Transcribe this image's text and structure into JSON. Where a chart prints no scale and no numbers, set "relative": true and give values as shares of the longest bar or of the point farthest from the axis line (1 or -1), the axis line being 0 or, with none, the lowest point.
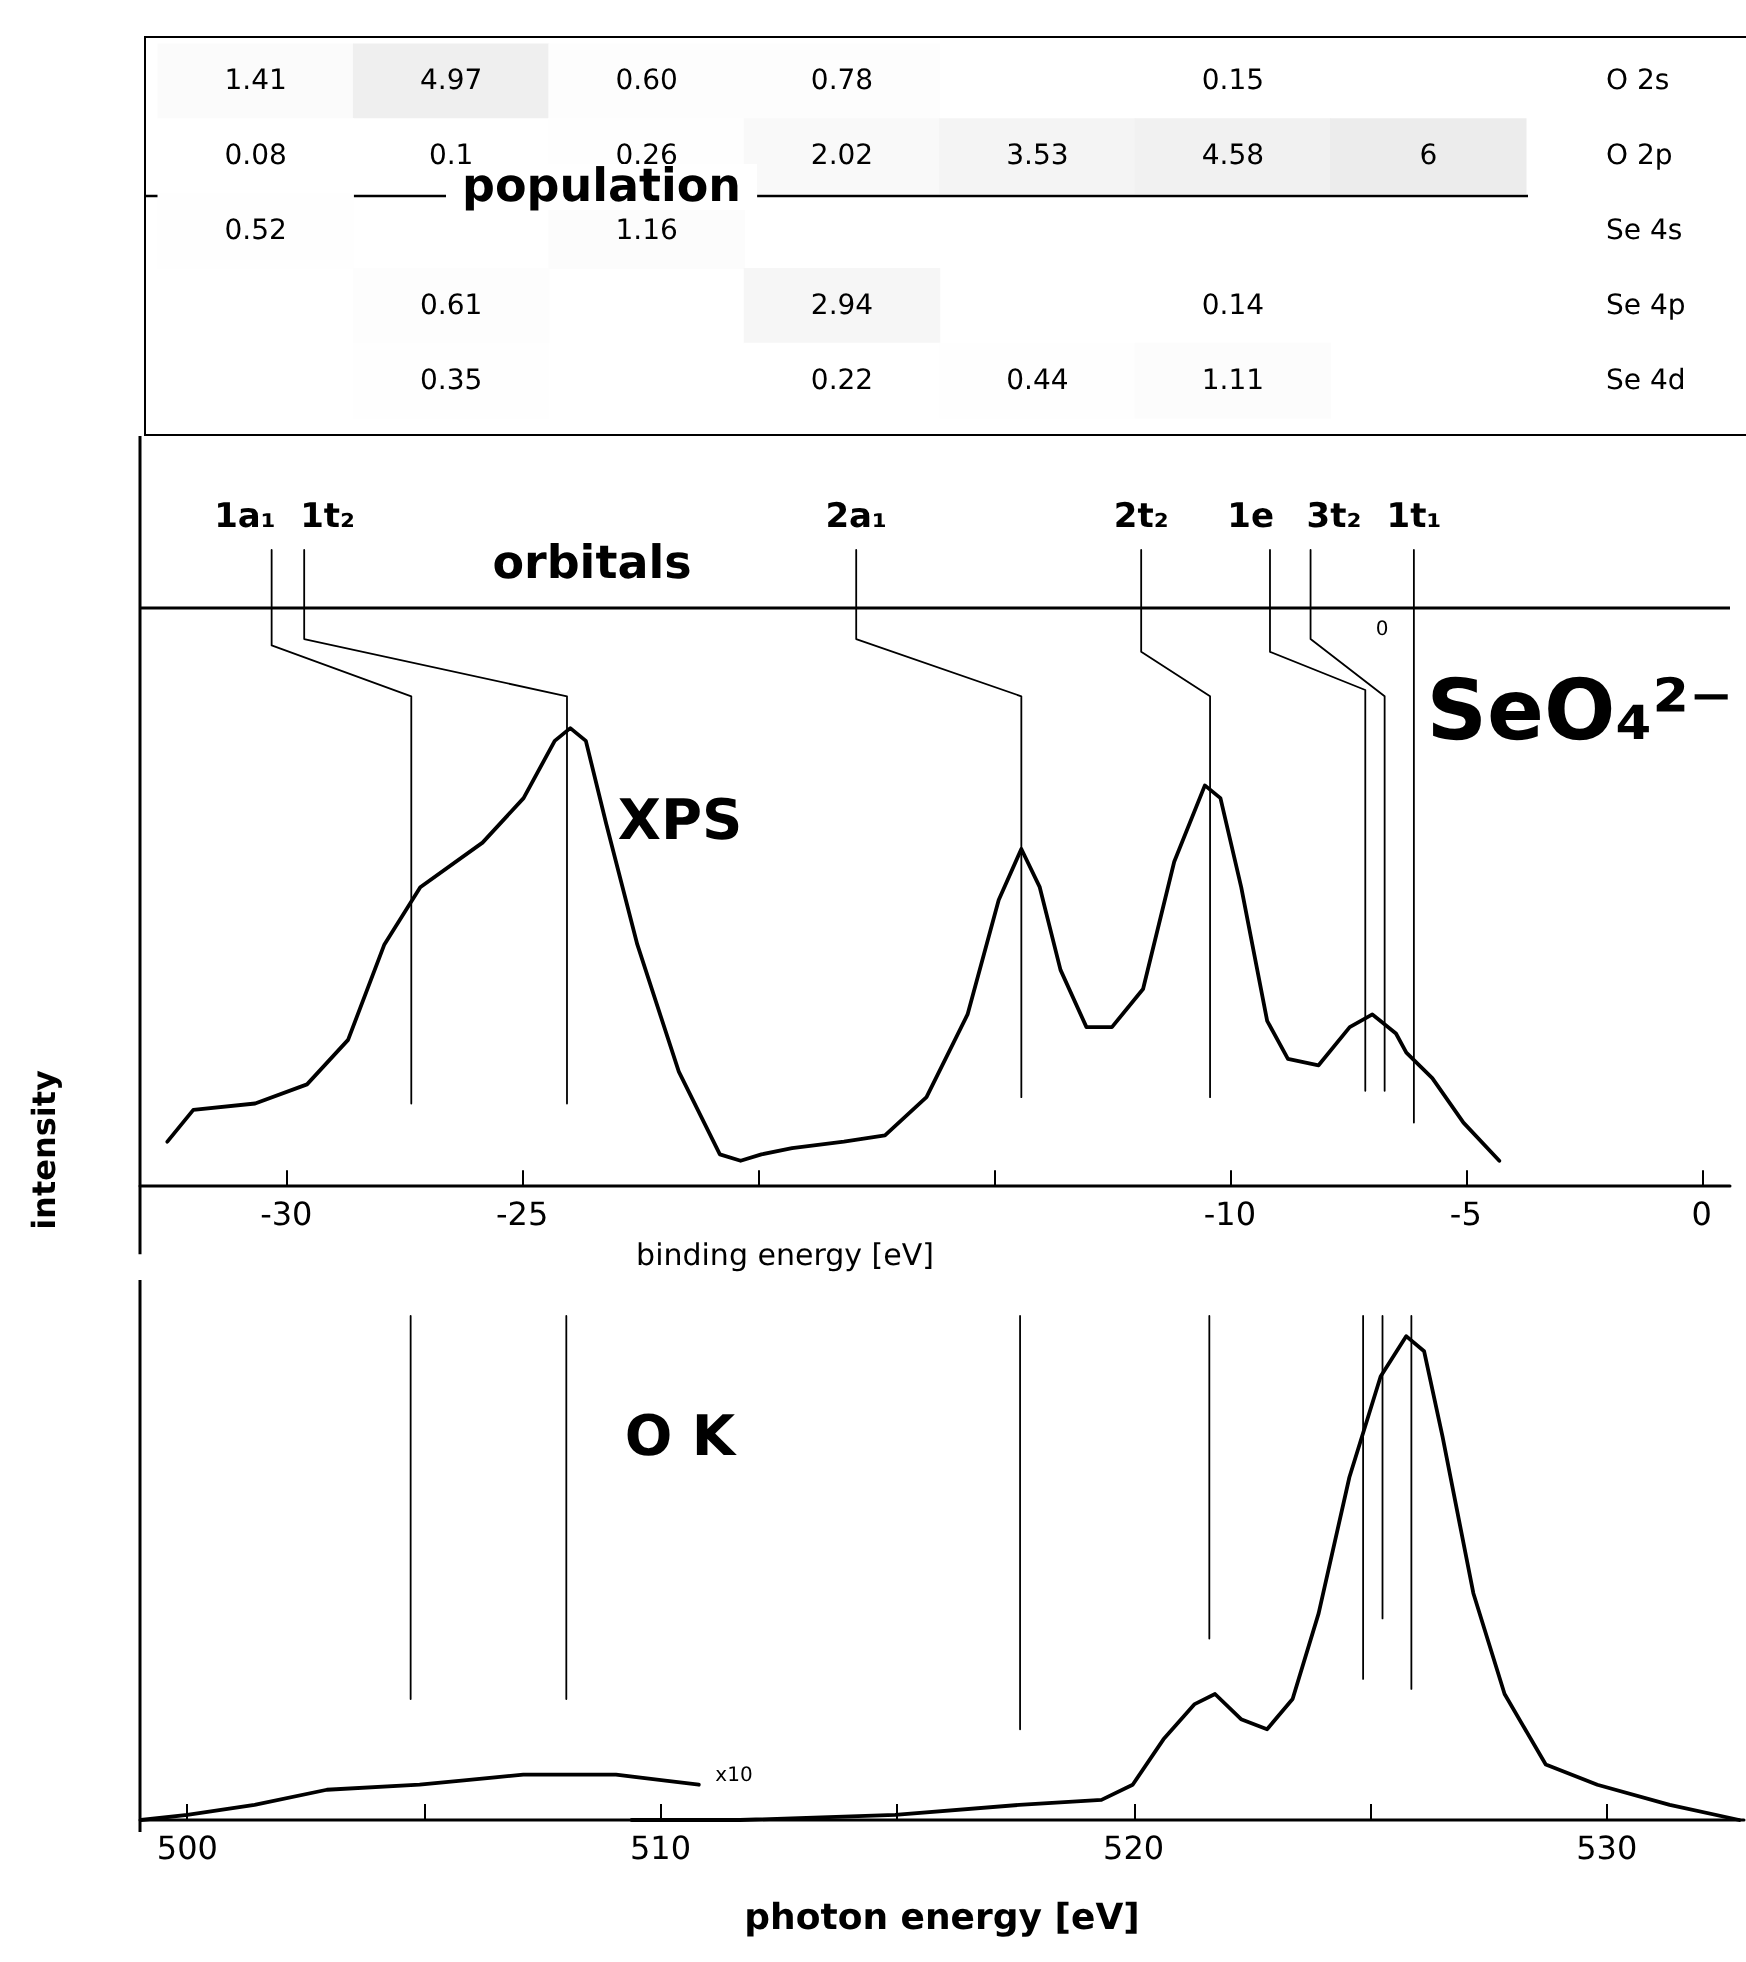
{
  "chart_data": [
    {
      "type": "heatmap",
      "title": "population",
      "categories": [
        null,
        null,
        null,
        null,
        null,
        null,
        null
      ],
      "y_categories": [
        "O 2s",
        "O 2p",
        "Se 4s",
        "Se 4p",
        "Se 4d"
      ],
      "cells": [
        [
          1.41,
          4.97,
          0.6,
          0.78,
          null,
          0.15,
          null
        ],
        [
          0.08,
          0.1,
          0.26,
          2.02,
          3.53,
          4.58,
          6
        ],
        [
          0.52,
          null,
          1.16,
          null,
          null,
          null,
          null
        ],
        [
          null,
          0.61,
          null,
          2.94,
          null,
          0.14,
          null
        ],
        [
          null,
          0.35,
          null,
          0.22,
          0.44,
          1.11,
          null
        ]
      ],
      "cell_labels": [
        [
          "1.41",
          "4.97",
          "0.60",
          "0.78",
          null,
          "0.15",
          null
        ],
        [
          "0.08",
          "0.1",
          "0.26",
          "2.02",
          "3.53",
          "4.58",
          "6"
        ],
        [
          "0.52",
          null,
          "1.16",
          null,
          null,
          null,
          null
        ],
        [
          null,
          "0.61",
          null,
          "2.94",
          null,
          "0.14",
          null
        ],
        [
          null,
          "0.35",
          null,
          "0.22",
          "0.44",
          "1.11",
          null
        ]
      ]
    },
    {
      "type": "line",
      "relative": true,
      "xlim": [
        -33.1,
        0.6
      ],
      "xticks": [
        -30,
        -25,
        {
          "value": -20,
          "label": null
        },
        {
          "value": -15,
          "label": null
        },
        -10,
        -5,
        0
      ],
      "xlabel": "binding energy [eV]",
      "ylabel": "intensity",
      "ref_lines": [
        {
          "axis": "y",
          "value": 0.91,
          "color": "#000000"
        }
      ],
      "annotations": [
        "orbitals",
        "XPS",
        "SeO₄²⁻",
        "0",
        {
          "text": "1a₁",
          "x": -30.31,
          "y": 1
        },
        {
          "text": "1t₂",
          "x": -29.62,
          "y": 1
        },
        {
          "text": "2a₁",
          "x": -17.92,
          "y": 1
        },
        {
          "text": "2t₂",
          "x": -11.88,
          "y": 1
        },
        {
          "text": "1e",
          "x": -9.15,
          "y": 1
        },
        {
          "text": "3t₂",
          "x": -8.29,
          "y": 1
        },
        {
          "text": "1t₁",
          "x": -6.1,
          "y": 1
        }
      ],
      "marker": "none",
      "line_style": "solid",
      "series": [
        {
          "color": "#000000",
          "x": [
            -32.52,
            -31.97,
            -30.66,
            -29.56,
            -28.69,
            -27.92,
            -27.16,
            -25.84,
            -24.97,
            -24.31,
            -23.98,
            -23.65,
            -23.22,
            -22.56,
            -21.68,
            -20.81,
            -20.37,
            -19.93,
            -19.28,
            -18.18,
            -17.31,
            -16.43,
            -15.56,
            -14.9,
            -14.42,
            -14.03,
            -13.59,
            -13.04,
            -12.5,
            -11.84,
            -11.18,
            -10.53,
            -10.2,
            -9.76,
            -9.21,
            -8.77,
            -8.12,
            -7.46,
            -6.98,
            -6.48,
            -6.26,
            -5.71,
            -5.05,
            -4.29
          ],
          "values": [
            0.07,
            0.12,
            0.13,
            0.16,
            0.23,
            0.38,
            0.47,
            0.54,
            0.61,
            0.7,
            0.72,
            0.7,
            0.57,
            0.38,
            0.18,
            0.05,
            0.04,
            0.05,
            0.06,
            0.07,
            0.08,
            0.14,
            0.27,
            0.45,
            0.53,
            0.47,
            0.34,
            0.25,
            0.25,
            0.31,
            0.51,
            0.63,
            0.61,
            0.47,
            0.26,
            0.2,
            0.19,
            0.25,
            0.27,
            0.24,
            0.21,
            0.17,
            0.1,
            0.04
          ]
        },
        {
          "color": "#000000",
          "x": [
            -30.31,
            -30.31,
            -27.35,
            -27.35
          ],
          "values": [
            1,
            0.85,
            0.77,
            0.13
          ]
        },
        {
          "color": "#000000",
          "x": [
            -29.62,
            -29.62,
            -24.05,
            -24.05
          ],
          "values": [
            1,
            0.86,
            0.77,
            0.13
          ]
        },
        {
          "color": "#000000",
          "x": [
            -17.92,
            -17.92,
            -14.42,
            -14.42
          ],
          "values": [
            1,
            0.86,
            0.77,
            0.14
          ]
        },
        {
          "color": "#000000",
          "x": [
            -11.88,
            -11.88,
            -10.42,
            -10.42
          ],
          "values": [
            1,
            0.84,
            0.77,
            0.14
          ]
        },
        {
          "color": "#000000",
          "x": [
            -9.15,
            -9.15,
            -7.13,
            -7.13
          ],
          "values": [
            1,
            0.84,
            0.78,
            0.15
          ]
        },
        {
          "color": "#000000",
          "x": [
            -8.29,
            -8.29,
            -6.72,
            -6.72
          ],
          "values": [
            1,
            0.86,
            0.77,
            0.15
          ]
        },
        {
          "color": "#000000",
          "x": [
            -6.1,
            -6.1
          ],
          "values": [
            1,
            0.1
          ]
        }
      ]
    },
    {
      "type": "line",
      "relative": true,
      "xlim": [
        499,
        532.9
      ],
      "xticks": [
        500,
        {
          "value": 505,
          "label": null
        },
        510,
        {
          "value": 515,
          "label": null
        },
        520,
        {
          "value": 525,
          "label": null
        },
        530
      ],
      "xlabel": "photon energy [eV]",
      "annotations": [
        "O K",
        "x10"
      ],
      "marker": "none",
      "line_style": "solid",
      "series": [
        {
          "color": "#000000",
          "x": [
            499.02,
            500,
            501.42,
            502.95,
            504.91,
            507.1,
            509.06,
            510.81
          ],
          "values": [
            0,
            0.01,
            0.03,
            0.06,
            0.07,
            0.09,
            0.09,
            0.07
          ]
        },
        {
          "color": "#000000",
          "x": [
            509.39,
            511.68,
            514.96,
            517.58,
            519.32,
            519.98,
            520.63,
            521.29,
            521.72,
            522.27,
            522.82,
            523.36,
            523.91,
            524.56,
            525.22,
            525.76,
            526.14,
            526.53,
            527.18,
            527.84,
            528.71,
            529.8,
            531.33,
            532.8
          ],
          "values": [
            0,
            0,
            0.01,
            0.03,
            0.04,
            0.07,
            0.16,
            0.23,
            0.25,
            0.2,
            0.18,
            0.24,
            0.41,
            0.68,
            0.88,
            0.96,
            0.93,
            0.76,
            0.45,
            0.25,
            0.11,
            0.07,
            0.03,
            0
          ]
        },
        {
          "color": "#000000",
          "x": [
            504.72,
            504.72
          ],
          "values": [
            1,
            0.24
          ]
        },
        {
          "color": "#000000",
          "x": [
            508.01,
            508.01
          ],
          "values": [
            1,
            0.24
          ]
        },
        {
          "color": "#000000",
          "x": [
            517.6,
            517.6
          ],
          "values": [
            1,
            0.18
          ]
        },
        {
          "color": "#000000",
          "x": [
            521.6,
            521.6
          ],
          "values": [
            1,
            0.36
          ]
        },
        {
          "color": "#000000",
          "x": [
            524.85,
            524.85
          ],
          "values": [
            1,
            0.28
          ]
        },
        {
          "color": "#000000",
          "x": [
            525.26,
            525.26
          ],
          "values": [
            1,
            0.4
          ]
        },
        {
          "color": "#000000",
          "x": [
            525.87,
            525.87
          ],
          "values": [
            1,
            0.26
          ]
        }
      ]
    }
  ]
}
